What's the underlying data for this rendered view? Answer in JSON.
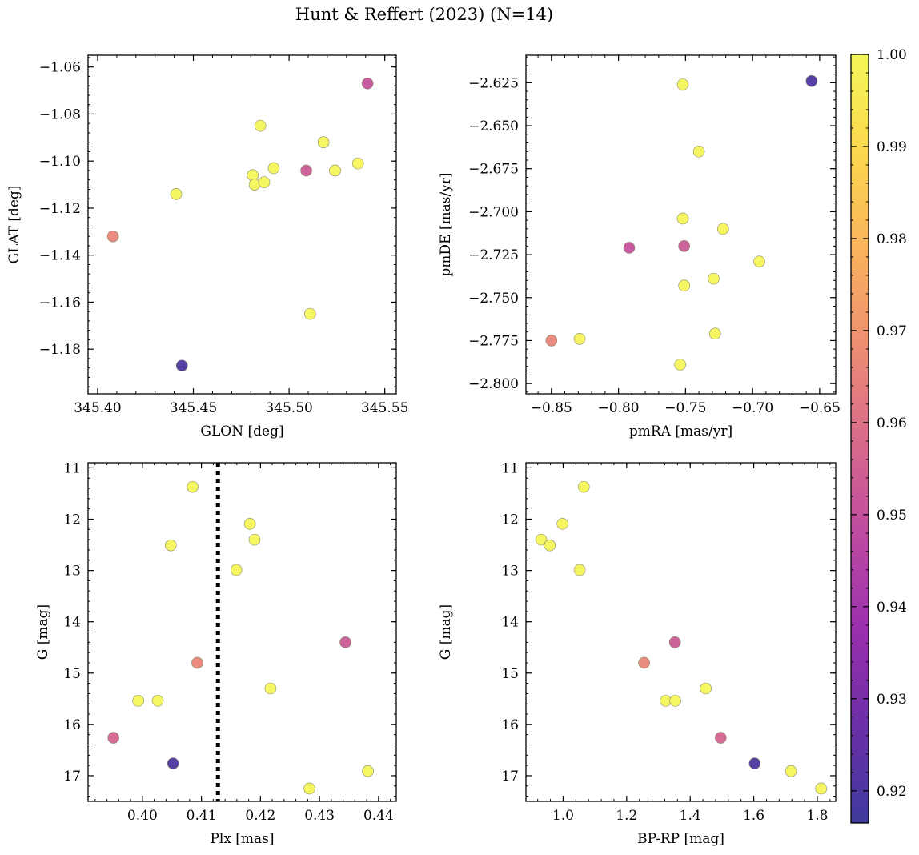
{
  "figure_title": "Hunt & Reffert (2023) (N=14)",
  "colorbar": {
    "min": 0.9165,
    "max": 1.0,
    "ticks": [
      0.92,
      0.93,
      0.94,
      0.95,
      0.96,
      0.97,
      0.98,
      0.99,
      1.0
    ],
    "tick_labels": [
      "0.92",
      "0.93",
      "0.94",
      "0.95",
      "0.96",
      "0.97",
      "0.98",
      "0.99",
      "1.00"
    ],
    "colormap": "plasma (truncated)",
    "colors": [
      "#3e3a9c",
      "#6a2fa6",
      "#9a2fae",
      "#bd4ba1",
      "#d86b8a",
      "#ee8f72",
      "#f9b45c",
      "#fbd84e",
      "#f4f65a"
    ]
  },
  "chart_data": [
    {
      "type": "scatter",
      "id": "glon-glat",
      "xlabel": "GLON [deg]",
      "ylabel": "GLAT [deg]",
      "xlim": [
        345.395,
        345.556
      ],
      "ylim": [
        -1.199,
        -1.055
      ],
      "invert_y": false,
      "xticks": [
        345.4,
        345.45,
        345.5,
        345.55
      ],
      "xtick_labels": [
        "345.40",
        "345.45",
        "345.50",
        "345.55"
      ],
      "yticks": [
        -1.06,
        -1.08,
        -1.1,
        -1.12,
        -1.14,
        -1.16,
        -1.18
      ],
      "ytick_labels": [
        "−1.06",
        "−1.08",
        "−1.10",
        "−1.12",
        "−1.14",
        "−1.16",
        "−1.18"
      ],
      "points": [
        {
          "x": 345.408,
          "y": -1.132,
          "c": 0.966
        },
        {
          "x": 345.444,
          "y": -1.187,
          "c": 0.92
        },
        {
          "x": 345.441,
          "y": -1.114,
          "c": 1.0
        },
        {
          "x": 345.481,
          "y": -1.106,
          "c": 1.0
        },
        {
          "x": 345.482,
          "y": -1.11,
          "c": 1.0
        },
        {
          "x": 345.485,
          "y": -1.085,
          "c": 1.0
        },
        {
          "x": 345.487,
          "y": -1.109,
          "c": 1.0
        },
        {
          "x": 345.492,
          "y": -1.103,
          "c": 1.0
        },
        {
          "x": 345.509,
          "y": -1.104,
          "c": 0.953
        },
        {
          "x": 345.511,
          "y": -1.165,
          "c": 1.0
        },
        {
          "x": 345.518,
          "y": -1.092,
          "c": 1.0
        },
        {
          "x": 345.524,
          "y": -1.104,
          "c": 1.0
        },
        {
          "x": 345.536,
          "y": -1.101,
          "c": 1.0
        },
        {
          "x": 345.541,
          "y": -1.067,
          "c": 0.95
        }
      ]
    },
    {
      "type": "scatter",
      "id": "pmra-pmde",
      "xlabel": "pmRA [mas/yr]",
      "ylabel": "pmDE [mas/yr]",
      "xlim": [
        -0.869,
        -0.638
      ],
      "ylim": [
        -2.806,
        -2.609
      ],
      "invert_y": false,
      "xticks": [
        -0.85,
        -0.8,
        -0.75,
        -0.7,
        -0.65
      ],
      "xtick_labels": [
        "−0.85",
        "−0.80",
        "−0.75",
        "−0.70",
        "−0.65"
      ],
      "yticks": [
        -2.625,
        -2.65,
        -2.675,
        -2.7,
        -2.725,
        -2.75,
        -2.775,
        -2.8
      ],
      "ytick_labels": [
        "−2.625",
        "−2.650",
        "−2.675",
        "−2.700",
        "−2.725",
        "−2.750",
        "−2.775",
        "−2.800"
      ],
      "points": [
        {
          "x": -0.85,
          "y": -2.775,
          "c": 0.966
        },
        {
          "x": -0.829,
          "y": -2.774,
          "c": 1.0
        },
        {
          "x": -0.792,
          "y": -2.721,
          "c": 0.95
        },
        {
          "x": -0.752,
          "y": -2.626,
          "c": 1.0
        },
        {
          "x": -0.752,
          "y": -2.704,
          "c": 1.0
        },
        {
          "x": -0.751,
          "y": -2.72,
          "c": 0.953
        },
        {
          "x": -0.751,
          "y": -2.743,
          "c": 1.0
        },
        {
          "x": -0.754,
          "y": -2.789,
          "c": 1.0
        },
        {
          "x": -0.74,
          "y": -2.665,
          "c": 1.0
        },
        {
          "x": -0.729,
          "y": -2.739,
          "c": 1.0
        },
        {
          "x": -0.722,
          "y": -2.71,
          "c": 1.0
        },
        {
          "x": -0.728,
          "y": -2.771,
          "c": 1.0
        },
        {
          "x": -0.695,
          "y": -2.729,
          "c": 1.0
        },
        {
          "x": -0.656,
          "y": -2.624,
          "c": 0.92
        }
      ]
    },
    {
      "type": "scatter",
      "id": "plx-g",
      "xlabel": "Plx [mas]",
      "ylabel": "G [mag]",
      "xlim": [
        0.3908,
        0.443
      ],
      "ylim": [
        10.9,
        17.5
      ],
      "invert_y": true,
      "xticks": [
        0.4,
        0.41,
        0.42,
        0.43,
        0.44
      ],
      "xtick_labels": [
        "0.40",
        "0.41",
        "0.42",
        "0.43",
        "0.44"
      ],
      "yticks": [
        11,
        12,
        13,
        14,
        15,
        16,
        17
      ],
      "ytick_labels": [
        "11",
        "12",
        "13",
        "14",
        "15",
        "16",
        "17"
      ],
      "vline": {
        "x": 0.4128,
        "style": "dotted"
      },
      "points": [
        {
          "x": 0.4085,
          "y": 11.37,
          "c": 1.0
        },
        {
          "x": 0.4182,
          "y": 12.09,
          "c": 1.0
        },
        {
          "x": 0.419,
          "y": 12.4,
          "c": 1.0
        },
        {
          "x": 0.4048,
          "y": 12.51,
          "c": 1.0
        },
        {
          "x": 0.4159,
          "y": 12.99,
          "c": 1.0
        },
        {
          "x": 0.4344,
          "y": 14.4,
          "c": 0.953
        },
        {
          "x": 0.4093,
          "y": 14.8,
          "c": 0.966
        },
        {
          "x": 0.4217,
          "y": 15.3,
          "c": 1.0
        },
        {
          "x": 0.3993,
          "y": 15.54,
          "c": 1.0
        },
        {
          "x": 0.4026,
          "y": 15.54,
          "c": 1.0
        },
        {
          "x": 0.3951,
          "y": 16.26,
          "c": 0.956
        },
        {
          "x": 0.4052,
          "y": 16.76,
          "c": 0.92
        },
        {
          "x": 0.4382,
          "y": 16.91,
          "c": 1.0
        },
        {
          "x": 0.4283,
          "y": 17.25,
          "c": 1.0
        }
      ]
    },
    {
      "type": "scatter",
      "id": "bprp-g",
      "xlabel": "BP-RP [mag]",
      "ylabel": "G [mag]",
      "xlim": [
        0.883,
        1.858
      ],
      "ylim": [
        10.9,
        17.5
      ],
      "invert_y": true,
      "xticks": [
        1.0,
        1.2,
        1.4,
        1.6,
        1.8
      ],
      "xtick_labels": [
        "1.0",
        "1.2",
        "1.4",
        "1.6",
        "1.8"
      ],
      "yticks": [
        11,
        12,
        13,
        14,
        15,
        16,
        17
      ],
      "ytick_labels": [
        "11",
        "12",
        "13",
        "14",
        "15",
        "16",
        "17"
      ],
      "points": [
        {
          "x": 1.065,
          "y": 11.37,
          "c": 1.0
        },
        {
          "x": 0.998,
          "y": 12.09,
          "c": 1.0
        },
        {
          "x": 0.931,
          "y": 12.4,
          "c": 1.0
        },
        {
          "x": 0.958,
          "y": 12.51,
          "c": 1.0
        },
        {
          "x": 1.052,
          "y": 12.99,
          "c": 1.0
        },
        {
          "x": 1.352,
          "y": 14.4,
          "c": 0.953
        },
        {
          "x": 1.255,
          "y": 14.8,
          "c": 0.966
        },
        {
          "x": 1.449,
          "y": 15.3,
          "c": 1.0
        },
        {
          "x": 1.323,
          "y": 15.54,
          "c": 1.0
        },
        {
          "x": 1.353,
          "y": 15.54,
          "c": 1.0
        },
        {
          "x": 1.496,
          "y": 16.26,
          "c": 0.956
        },
        {
          "x": 1.603,
          "y": 16.76,
          "c": 0.92
        },
        {
          "x": 1.717,
          "y": 16.91,
          "c": 1.0
        },
        {
          "x": 1.812,
          "y": 17.25,
          "c": 1.0
        }
      ]
    }
  ]
}
